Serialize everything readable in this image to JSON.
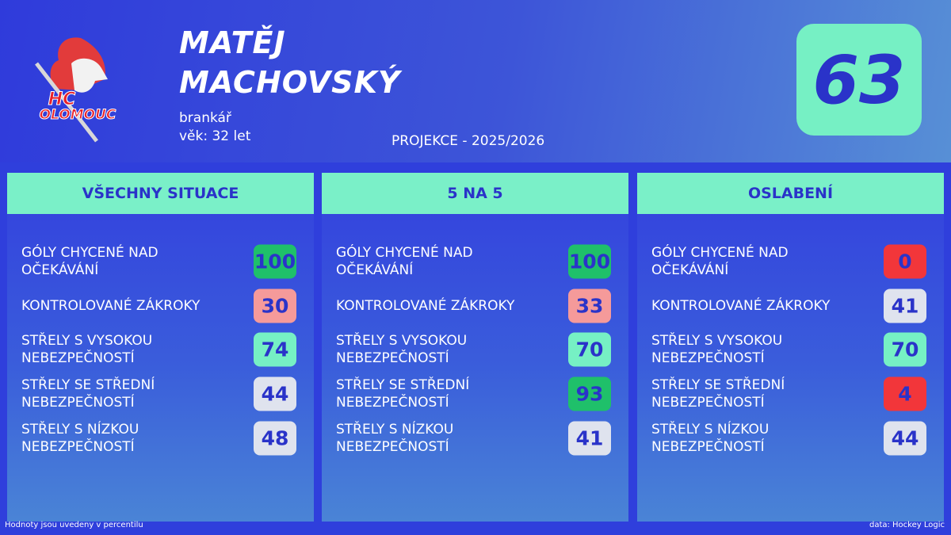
{
  "header": {
    "name_lines": [
      "MATĚJ",
      "MACHOVSKÝ"
    ],
    "position": "brankář",
    "age": "věk: 32 let",
    "projection": "PROJEKCE - 2025/2026",
    "rating": 63,
    "logo_lines": [
      "HC",
      "OLOMOUC"
    ]
  },
  "panels": [
    {
      "title": "VŠECHNY SITUACE",
      "rows": [
        {
          "label": "GÓLY CHYCENÉ NAD OČEKÁVÁNÍ",
          "value": 100
        },
        {
          "label": "KONTROLOVANÉ ZÁKROKY",
          "value": 30
        },
        {
          "label": "STŘELY S VYSOKOU NEBEZPEČNOSTÍ",
          "value": 74
        },
        {
          "label": "STŘELY SE STŘEDNÍ NEBEZPEČNOSTÍ",
          "value": 44
        },
        {
          "label": "STŘELY S NÍZKOU NEBEZPEČNOSTÍ",
          "value": 48
        }
      ]
    },
    {
      "title": "5 NA 5",
      "rows": [
        {
          "label": "GÓLY CHYCENÉ NAD OČEKÁVÁNÍ",
          "value": 100
        },
        {
          "label": "KONTROLOVANÉ ZÁKROKY",
          "value": 33
        },
        {
          "label": "STŘELY S VYSOKOU NEBEZPEČNOSTÍ",
          "value": 70
        },
        {
          "label": "STŘELY SE STŘEDNÍ NEBEZPEČNOSTÍ",
          "value": 93
        },
        {
          "label": "STŘELY S NÍZKOU NEBEZPEČNOSTÍ",
          "value": 41
        }
      ]
    },
    {
      "title": "OSLABENÍ",
      "rows": [
        {
          "label": "GÓLY CHYCENÉ NAD OČEKÁVÁNÍ",
          "value": 0
        },
        {
          "label": "KONTROLOVANÉ ZÁKROKY",
          "value": 41
        },
        {
          "label": "STŘELY S VYSOKOU NEBEZPEČNOSTÍ",
          "value": 70
        },
        {
          "label": "STŘELY SE STŘEDNÍ NEBEZPEČNOSTÍ",
          "value": 4
        },
        {
          "label": "STŘELY S NÍZKOU NEBEZPEČNOSTÍ",
          "value": 44
        }
      ]
    }
  ],
  "footer": {
    "note": "Hodnoty jsou uvedeny v percentilu",
    "source": "data: Hockey Logic"
  }
}
